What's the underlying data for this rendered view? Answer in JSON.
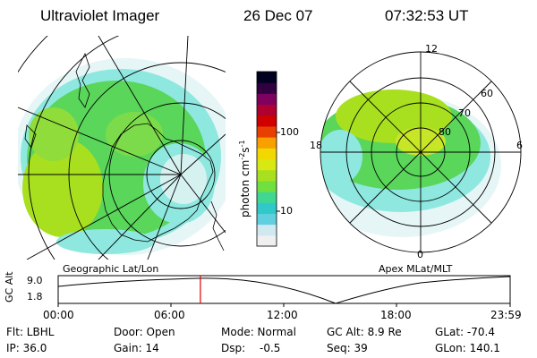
{
  "header": {
    "instrument": "Ultraviolet Imager",
    "date": "26 Dec 07",
    "time": "07:32:53 UT"
  },
  "colorbar": {
    "unit_label": "photon cm",
    "unit_exp1": "-2",
    "unit_mid": "s",
    "unit_exp2": "-1",
    "ticks": [
      "100",
      "10"
    ],
    "colors": [
      "#f0f0f0",
      "#d0e8f0",
      "#60d0e0",
      "#30c8c8",
      "#40d890",
      "#70e040",
      "#a8e020",
      "#d8e810",
      "#f0d800",
      "#f8a000",
      "#e84000",
      "#d00000",
      "#b00030",
      "#800060",
      "#300040",
      "#000020"
    ]
  },
  "left_map": {
    "caption": "Geographic Lat/Lon",
    "palette": {
      "green": "#5ad65a",
      "yellow": "#c8e628",
      "cyan": "#8ee8e0",
      "pale": "#e6f6f6"
    }
  },
  "right_map": {
    "caption": "Apex MLat/MLT",
    "mlt_labels": [
      "12",
      "18",
      "6",
      "0"
    ],
    "lat_labels": [
      "60",
      "70",
      "80"
    ]
  },
  "timeline": {
    "axis_title": "GC Alt",
    "y_ticks": [
      "9.0",
      "1.8"
    ],
    "x_ticks": [
      "00:00",
      "06:00",
      "12:00",
      "18:00",
      "23:59"
    ],
    "cursor_time": "07:32:53",
    "cursor_color": "#e00000"
  },
  "info": {
    "row1": {
      "flt": "Flt: LBHL",
      "door": "Door: Open",
      "mode": "Mode: Normal",
      "gcalt": "GC Alt: 8.9 Re",
      "glat": "GLat: -70.4"
    },
    "row2": {
      "ip": "IP: 36.0",
      "gain": "Gain: 14",
      "dsp_label": "Dsp:",
      "dsp_value": "-0.5",
      "seq": "Seq: 39",
      "glon": "GLon: 140.1"
    }
  }
}
